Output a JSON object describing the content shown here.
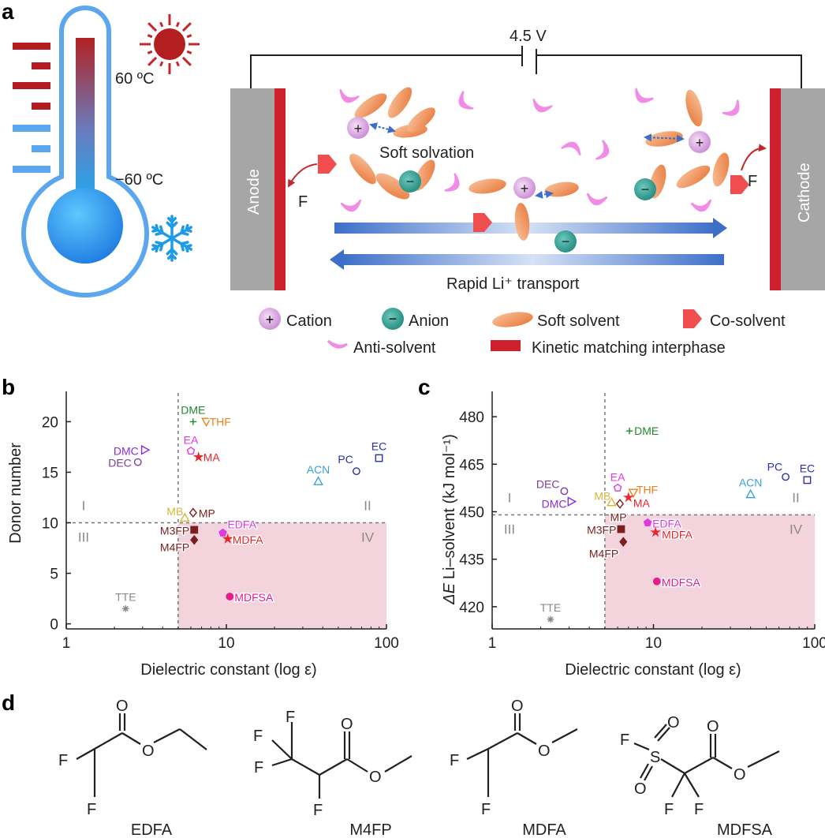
{
  "panels": {
    "a": "a",
    "b": "b",
    "c": "c",
    "d": "d"
  },
  "panel_a": {
    "temp_high": "60 ºC",
    "temp_low": "−60 ºC",
    "voltage": "4.5 V",
    "anode": "Anode",
    "cathode": "Cathode",
    "soft_solvation": "Soft solvation",
    "rapid_transport": "Rapid Li⁺ transport",
    "f_left": "F",
    "f_right": "F",
    "plus_sign": "+",
    "minus_sign": "−",
    "legend": {
      "cation": "Cation",
      "anion": "Anion",
      "soft_solvent": "Soft solvent",
      "co_solvent": "Co-solvent",
      "anti_solvent": "Anti-solvent",
      "kinetic": "Kinetic matching interphase"
    },
    "colors": {
      "anode": "#a6a6a6",
      "interphase": "#d0202e",
      "cation": "#e3b6e8",
      "anion": "#35a89c",
      "solvent": "#f0955a",
      "cosolvent": "#f04e4e",
      "antisolvent": "#f08ce6",
      "arrow": "#3d6fc9"
    }
  },
  "chart_data": [
    {
      "type": "scatter",
      "panel": "b",
      "xlabel": "Dielectric constant (log ε)",
      "ylabel": "Donor number",
      "xscale": "log",
      "xlim": [
        1,
        100
      ],
      "ylim": [
        -0.5,
        23
      ],
      "xticks": [
        1,
        10,
        100
      ],
      "xtick_labels": [
        "1",
        "10",
        "100"
      ],
      "yticks": [
        0,
        5,
        10,
        15,
        20
      ],
      "ytick_labels": [
        "0",
        "5",
        "10",
        "15",
        "20"
      ],
      "threshold_x": 5,
      "threshold_y": 10,
      "regions": [
        "I",
        "II",
        "III",
        "IV"
      ],
      "points": [
        {
          "name": "DME",
          "x": 6.2,
          "y": 20.0,
          "marker": "plus",
          "color": "#1d8a2a"
        },
        {
          "name": "THF",
          "x": 7.5,
          "y": 20.0,
          "marker": "tri-down",
          "color": "#f0801e"
        },
        {
          "name": "EA",
          "x": 6.0,
          "y": 17.1,
          "marker": "pentagon",
          "color": "#e03ae0"
        },
        {
          "name": "MA",
          "x": 6.7,
          "y": 16.5,
          "marker": "star",
          "color": "#e8262a"
        },
        {
          "name": "DMC",
          "x": 3.1,
          "y": 17.2,
          "marker": "tri-right",
          "color": "#8a2be2"
        },
        {
          "name": "DEC",
          "x": 2.8,
          "y": 16.0,
          "marker": "circle",
          "color": "#7e3c9e"
        },
        {
          "name": "ACN",
          "x": 37.5,
          "y": 14.1,
          "marker": "tri-up",
          "color": "#3aa0e0"
        },
        {
          "name": "PC",
          "x": 64.9,
          "y": 15.1,
          "marker": "circle",
          "color": "#2b2bb8"
        },
        {
          "name": "EC",
          "x": 89.8,
          "y": 16.4,
          "marker": "square",
          "color": "#2b2bb8"
        },
        {
          "name": "MB",
          "x": 5.5,
          "y": 10.5,
          "marker": "tri-up",
          "color": "#d8b43c"
        },
        {
          "name": "MP",
          "x": 6.2,
          "y": 11.0,
          "marker": "diamond",
          "color": "#7a1f1f"
        },
        {
          "name": "EDFA",
          "x": 9.5,
          "y": 9.0,
          "marker": "pentagon-filled",
          "color": "#e03ae0"
        },
        {
          "name": "M3FP",
          "x": 6.3,
          "y": 9.3,
          "marker": "square-filled",
          "color": "#7a1f1f"
        },
        {
          "name": "M4FP",
          "x": 6.3,
          "y": 8.3,
          "marker": "diamond-filled",
          "color": "#7a1f1f"
        },
        {
          "name": "MDFA",
          "x": 10.2,
          "y": 8.4,
          "marker": "star",
          "color": "#e8262a"
        },
        {
          "name": "MDFSA",
          "x": 10.5,
          "y": 2.7,
          "marker": "circle-filled",
          "color": "#e01e8c"
        },
        {
          "name": "TTE",
          "x": 2.35,
          "y": 1.5,
          "marker": "asterisk",
          "color": "#8a8a8a"
        }
      ]
    },
    {
      "type": "scatter",
      "panel": "c",
      "xlabel": "Dielectric constant (log ε)",
      "ylabel": "ΔE Li–solvent (kJ mol⁻¹)",
      "ylabel_main": "Li–solvent (kJ mol⁻¹)",
      "ylabel_delta": "Δ",
      "ylabel_e": "E",
      "xscale": "log",
      "xlim": [
        1,
        100
      ],
      "ylim": [
        413,
        488
      ],
      "xticks": [
        1,
        10,
        100
      ],
      "xtick_labels": [
        "1",
        "10",
        "100"
      ],
      "yticks": [
        420,
        435,
        450,
        465,
        480
      ],
      "ytick_labels": [
        "420",
        "435",
        "450",
        "465",
        "480"
      ],
      "threshold_x": 5,
      "threshold_y": 449,
      "regions": [
        "I",
        "II",
        "III",
        "IV"
      ],
      "points": [
        {
          "name": "DME",
          "x": 7.1,
          "y": 475.5,
          "marker": "plus",
          "color": "#1d8a2a"
        },
        {
          "name": "EA",
          "x": 6.0,
          "y": 457.5,
          "marker": "pentagon",
          "color": "#e03ae0"
        },
        {
          "name": "THF",
          "x": 7.5,
          "y": 456.0,
          "marker": "tri-down",
          "color": "#f0801e"
        },
        {
          "name": "MA",
          "x": 7.0,
          "y": 454.5,
          "marker": "star",
          "color": "#e8262a"
        },
        {
          "name": "DEC",
          "x": 2.8,
          "y": 456.5,
          "marker": "circle",
          "color": "#7e3c9e"
        },
        {
          "name": "DMC",
          "x": 3.1,
          "y": 453.2,
          "marker": "tri-right",
          "color": "#8a2be2"
        },
        {
          "name": "MB",
          "x": 5.5,
          "y": 453.0,
          "marker": "tri-up",
          "color": "#d8b43c"
        },
        {
          "name": "MP",
          "x": 6.2,
          "y": 452.5,
          "marker": "diamond",
          "color": "#7a1f1f"
        },
        {
          "name": "ACN",
          "x": 40.0,
          "y": 455.5,
          "marker": "tri-up",
          "color": "#3aa0e0"
        },
        {
          "name": "PC",
          "x": 66.0,
          "y": 461.0,
          "marker": "circle",
          "color": "#2b2bb8"
        },
        {
          "name": "EC",
          "x": 89.8,
          "y": 460.0,
          "marker": "square",
          "color": "#2b2bb8"
        },
        {
          "name": "EDFA",
          "x": 9.2,
          "y": 446.5,
          "marker": "pentagon-filled",
          "color": "#e03ae0"
        },
        {
          "name": "M3FP",
          "x": 6.3,
          "y": 444.5,
          "marker": "square-filled",
          "color": "#7a1f1f"
        },
        {
          "name": "M4FP",
          "x": 6.5,
          "y": 440.5,
          "marker": "diamond-filled",
          "color": "#7a1f1f"
        },
        {
          "name": "MDFA",
          "x": 10.3,
          "y": 443.5,
          "marker": "star",
          "color": "#e8262a"
        },
        {
          "name": "MDFSA",
          "x": 10.5,
          "y": 428.0,
          "marker": "circle-filled",
          "color": "#e01e8c"
        },
        {
          "name": "TTE",
          "x": 2.3,
          "y": 416.0,
          "marker": "asterisk",
          "color": "#8a8a8a"
        }
      ]
    }
  ],
  "panel_d": {
    "molecules": [
      "EDFA",
      "M4FP",
      "MDFA",
      "MDFSA"
    ],
    "atoms": {
      "O": "O",
      "F": "F",
      "S": "S"
    }
  }
}
